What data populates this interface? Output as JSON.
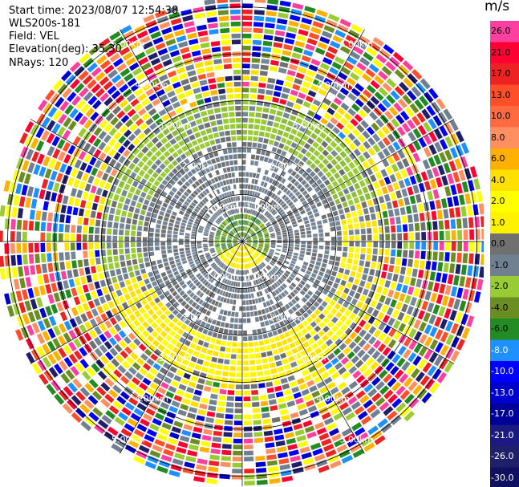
{
  "header": {
    "start_time": "Start time: 2023/08/07 12:54:38",
    "instrument": "WLS200s-181",
    "field": "Field: VEL",
    "elevation": "Elevation(deg): 35.30",
    "nrays": "NRays: 120"
  },
  "colorbar": {
    "unit": "m/s",
    "labels": [
      "26.0",
      "21.0",
      "17.0",
      "13.0",
      "10.0",
      "8.0",
      "6.0",
      "4.0",
      "2.0",
      "1.0",
      "0.0",
      "-1.0",
      "-2.0",
      "-4.0",
      "-6.0",
      "-8.0",
      "-10.0",
      "-13.0",
      "-17.0",
      "-21.0",
      "-26.0",
      "-30.0"
    ],
    "colors": [
      "#ff3fa0",
      "#ff0033",
      "#ee2222",
      "#ff4f2a",
      "#ff6b40",
      "#ff8f60",
      "#ffb000",
      "#ffe000",
      "#ffff00",
      "#fff200",
      "#707070",
      "#708090",
      "#99cc33",
      "#6b8e23",
      "#228b22",
      "#1e90ff",
      "#0000ff",
      "#0000cd",
      "#000099",
      "#1a1a80",
      "#20206a",
      "#101060"
    ]
  },
  "chart_data": {
    "type": "ppi",
    "field": "VEL",
    "unit": "m/s",
    "range_rings_km": [
      1.0,
      2.0,
      3.0,
      4.0,
      5.0
    ],
    "ring_labels": [
      "1.00km",
      "2.00km",
      "3.00km",
      "4.00km",
      "5.00km"
    ],
    "vmin": -30.0,
    "vmax": 26.0,
    "nrays": 120
  }
}
